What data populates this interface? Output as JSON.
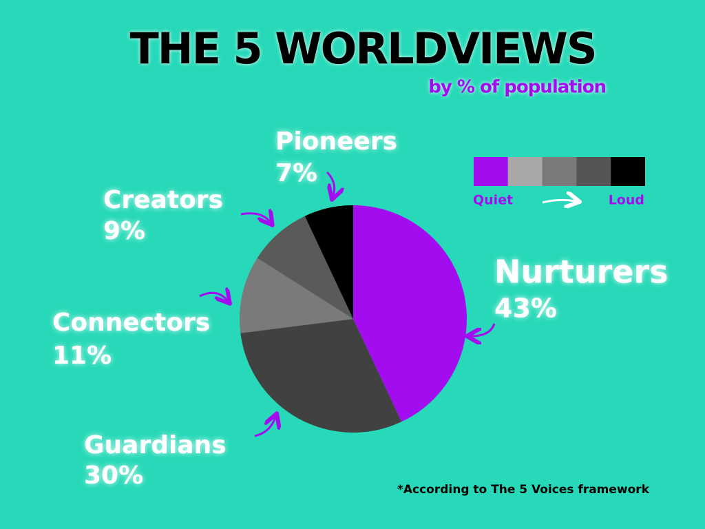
{
  "chart_data": {
    "type": "pie",
    "title": "THE 5 WORLDVIEWS",
    "subtitle": "by % of population",
    "categories": [
      "Nurturers",
      "Guardians",
      "Connectors",
      "Creators",
      "Pioneers"
    ],
    "values": [
      43,
      30,
      11,
      9,
      7
    ],
    "value_labels": [
      "43%",
      "30%",
      "11%",
      "9%",
      "7%"
    ],
    "colors": [
      "#a40cf0",
      "#414141",
      "#7a7a7a",
      "#5a5a5a",
      "#000000"
    ],
    "scale_legend": {
      "colors": [
        "#a40cf0",
        "#a8a8a8",
        "#7a7a7a",
        "#555555",
        "#000000"
      ],
      "low_label": "Quiet",
      "high_label": "Loud"
    },
    "footnote": "*According to The 5 Voices framework"
  }
}
